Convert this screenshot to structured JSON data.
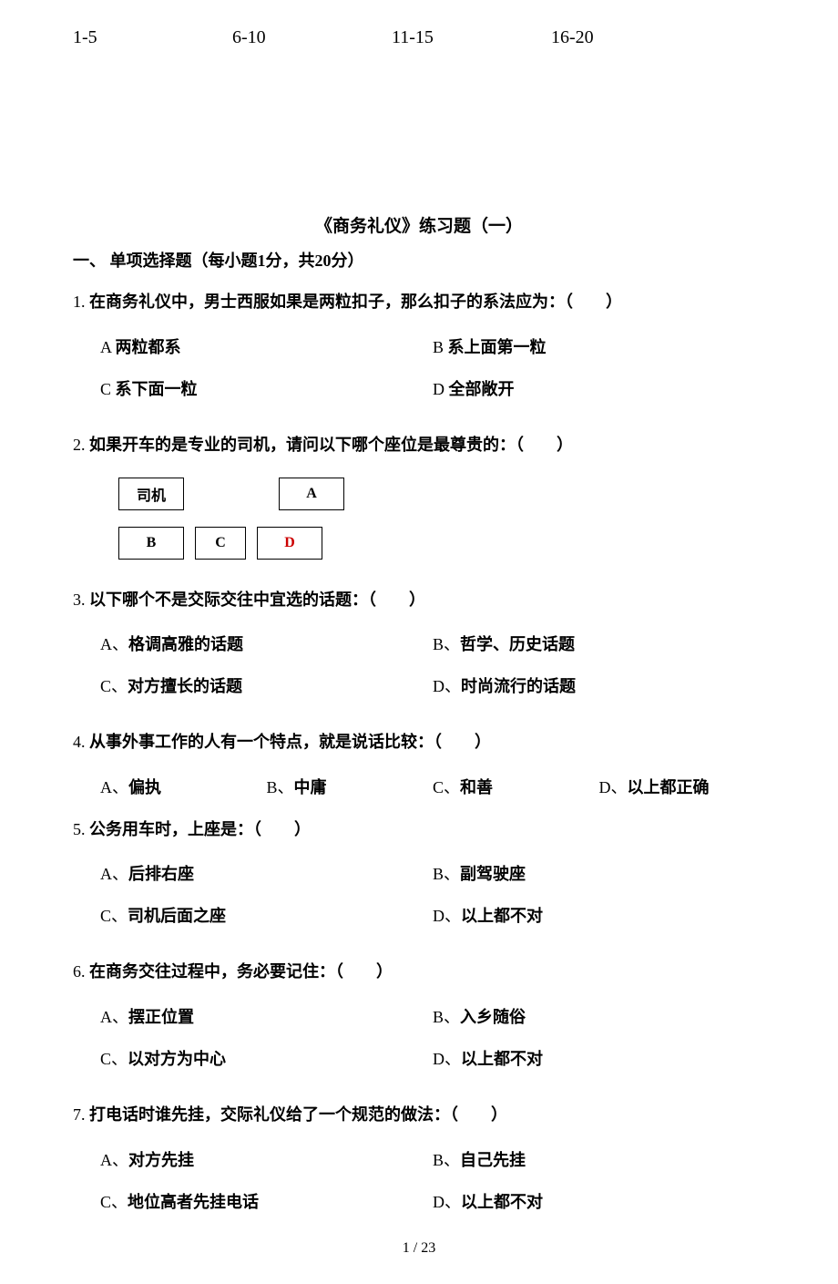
{
  "header": {
    "h1": "1-5",
    "h2": "6-10",
    "h3": "11-15",
    "h4": "16-20"
  },
  "title": "《商务礼仪》练习题（一）",
  "section": "一、 单项选择题（每小题1分，共20分）",
  "q1": {
    "num": "1.",
    "text": "在商务礼仪中，男士西服如果是两粒扣子，那么扣子的系法应为：（　　）",
    "a": {
      "label": "A ",
      "text": "两粒都系"
    },
    "b": {
      "label": "B ",
      "text": "系上面第一粒"
    },
    "c": {
      "label": "C ",
      "text": "系下面一粒"
    },
    "d": {
      "label": "D ",
      "text": "全部敞开"
    }
  },
  "q2": {
    "num": "2.",
    "text": "如果开车的是专业的司机，请问以下哪个座位是最尊贵的：（　　）",
    "seats": {
      "driver": "司机",
      "a": "A",
      "b": "B",
      "c": "C",
      "d": "D"
    }
  },
  "q3": {
    "num": "3.",
    "text": "以下哪个不是交际交往中宜选的话题：（　　）",
    "a": {
      "label": "A、",
      "text": "格调高雅的话题"
    },
    "b": {
      "label": "B、",
      "text": "哲学、历史话题"
    },
    "c": {
      "label": "C、",
      "text": "对方擅长的话题"
    },
    "d": {
      "label": "D、",
      "text": "时尚流行的话题"
    }
  },
  "q4": {
    "num": "4.",
    "text": "从事外事工作的人有一个特点，就是说话比较：（　　）",
    "a": {
      "label": "A、",
      "text": "偏执"
    },
    "b": {
      "label": "B、",
      "text": "中庸"
    },
    "c": {
      "label": "C、",
      "text": "和善"
    },
    "d": {
      "label": "D、",
      "text": "以上都正确"
    }
  },
  "q5": {
    "num": "5.",
    "text": "公务用车时，上座是：（　　）",
    "a": {
      "label": "A、",
      "text": "后排右座"
    },
    "b": {
      "label": "B、",
      "text": "副驾驶座"
    },
    "c": {
      "label": "C、",
      "text": "司机后面之座"
    },
    "d": {
      "label": "D、",
      "text": "以上都不对"
    }
  },
  "q6": {
    "num": "6.",
    "text": "在商务交往过程中，务必要记住：（　　）",
    "a": {
      "label": "A、",
      "text": "摆正位置"
    },
    "b": {
      "label": "B、",
      "text": "入乡随俗"
    },
    "c": {
      "label": "C、",
      "text": "以对方为中心"
    },
    "d": {
      "label": "D、",
      "text": "以上都不对"
    }
  },
  "q7": {
    "num": "7.",
    "text": "打电话时谁先挂，交际礼仪给了一个规范的做法：（　　）",
    "a": {
      "label": "A、",
      "text": "对方先挂"
    },
    "b": {
      "label": "B、",
      "text": "自己先挂"
    },
    "c": {
      "label": "C、",
      "text": "地位高者先挂电话"
    },
    "d": {
      "label": "D、",
      "text": "以上都不对"
    }
  },
  "pagenum": "1 / 23",
  "style": {
    "bg": "#ffffff",
    "text": "#000000",
    "red": "#cc0000",
    "body_fontsize": 18,
    "title_fontsize": 19,
    "box_border": "#000000"
  }
}
